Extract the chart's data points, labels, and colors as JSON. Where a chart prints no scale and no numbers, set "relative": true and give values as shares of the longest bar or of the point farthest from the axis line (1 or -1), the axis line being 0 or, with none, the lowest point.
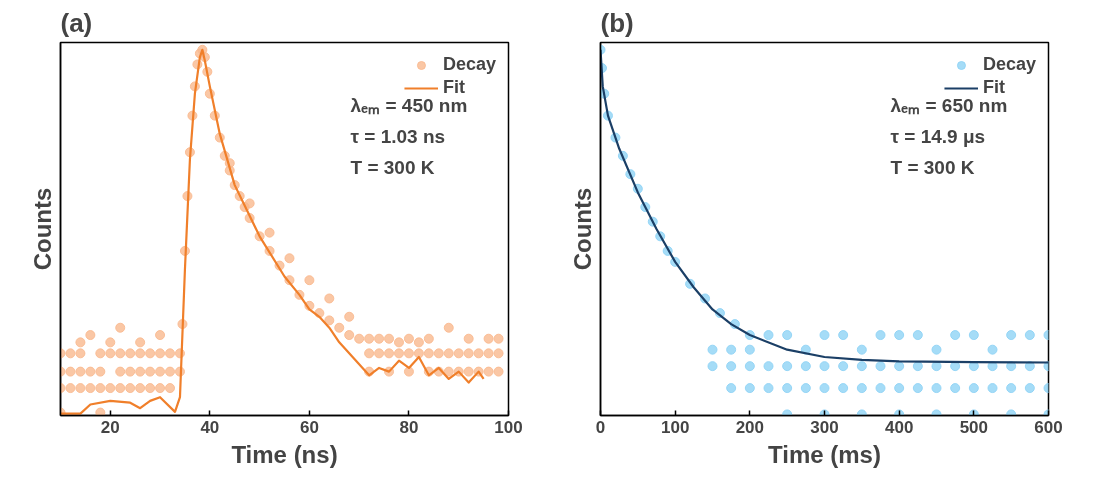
{
  "chart_data": [
    {
      "type": "scatter",
      "title": "(a)",
      "xlabel": "Time (ns)",
      "ylabel": "Counts",
      "relative": true,
      "xlim": [
        10,
        100
      ],
      "xticks": [
        20,
        40,
        60,
        80,
        100
      ],
      "grid": false,
      "legend": "top right",
      "tick_labels": "x",
      "annotations": [
        "λₑₘ = 450 nm",
        "τ = 1.03 ns",
        "T = 300 K"
      ],
      "series": [
        {
          "name": "Decay",
          "marker": "circle",
          "color": "#f9b98f",
          "x": [
            10,
            10,
            10,
            10,
            12,
            12,
            12,
            14,
            14,
            14,
            14,
            16,
            16,
            16,
            18,
            18,
            18,
            18,
            20,
            20,
            20,
            22,
            22,
            22,
            22,
            24,
            24,
            24,
            26,
            26,
            26,
            26,
            28,
            28,
            28,
            30,
            30,
            30,
            30,
            32,
            32,
            32,
            34,
            34,
            34.5,
            35,
            35.5,
            36,
            36.5,
            37,
            37.5,
            38,
            38.5,
            39,
            39.5,
            40,
            41,
            42,
            43,
            44,
            45,
            46,
            47,
            48,
            50,
            52,
            54,
            56,
            58,
            60,
            62,
            64,
            66,
            68,
            70,
            44,
            48,
            52,
            56,
            60,
            64,
            68,
            72,
            72,
            72,
            74,
            74,
            76,
            76,
            76,
            78,
            78,
            80,
            80,
            80,
            82,
            82,
            84,
            84,
            84,
            86,
            86,
            88,
            88,
            88,
            90,
            90,
            92,
            92,
            92,
            94,
            94,
            96,
            96,
            96,
            98,
            98,
            98
          ],
          "values": [
            0.17,
            0.12,
            0.075,
            0.008,
            0.17,
            0.12,
            0.075,
            0.2,
            0.17,
            0.12,
            0.075,
            0.22,
            0.12,
            0.075,
            0.17,
            0.12,
            0.075,
            0.008,
            0.2,
            0.17,
            0.075,
            0.24,
            0.17,
            0.12,
            0.075,
            0.17,
            0.12,
            0.075,
            0.2,
            0.17,
            0.12,
            0.075,
            0.17,
            0.12,
            0.075,
            0.22,
            0.17,
            0.12,
            0.075,
            0.17,
            0.12,
            0.075,
            0.17,
            0.12,
            0.25,
            0.45,
            0.6,
            0.72,
            0.82,
            0.9,
            0.96,
            0.99,
            1.0,
            0.98,
            0.94,
            0.88,
            0.82,
            0.76,
            0.71,
            0.67,
            0.63,
            0.6,
            0.57,
            0.54,
            0.49,
            0.45,
            0.41,
            0.37,
            0.33,
            0.3,
            0.28,
            0.26,
            0.24,
            0.22,
            0.21,
            0.69,
            0.58,
            0.5,
            0.43,
            0.37,
            0.32,
            0.27,
            0.21,
            0.17,
            0.12,
            0.21,
            0.17,
            0.21,
            0.17,
            0.12,
            0.2,
            0.17,
            0.21,
            0.17,
            0.12,
            0.2,
            0.17,
            0.21,
            0.17,
            0.12,
            0.17,
            0.12,
            0.24,
            0.17,
            0.12,
            0.17,
            0.12,
            0.21,
            0.17,
            0.12,
            0.17,
            0.12,
            0.21,
            0.17,
            0.12,
            0.21,
            0.17,
            0.12
          ]
        },
        {
          "name": "Fit",
          "type": "line",
          "line_style": "solid",
          "color": "#f07f2a",
          "x": [
            10,
            14,
            16,
            20,
            24,
            26,
            28,
            30,
            33,
            34,
            35,
            36,
            37,
            38,
            38.5,
            39,
            40,
            42,
            45,
            50,
            55,
            58,
            60,
            62,
            64,
            66,
            68,
            70,
            72,
            74,
            76,
            78,
            80,
            82,
            84,
            86,
            88,
            90,
            92,
            94,
            95
          ],
          "values": [
            0.005,
            0.005,
            0.03,
            0.04,
            0.035,
            0.02,
            0.04,
            0.05,
            0.01,
            0.05,
            0.4,
            0.7,
            0.88,
            0.98,
            1.0,
            0.97,
            0.9,
            0.77,
            0.63,
            0.49,
            0.38,
            0.33,
            0.29,
            0.27,
            0.24,
            0.2,
            0.17,
            0.14,
            0.11,
            0.13,
            0.12,
            0.15,
            0.13,
            0.16,
            0.11,
            0.13,
            0.1,
            0.12,
            0.09,
            0.12,
            0.1
          ]
        }
      ]
    },
    {
      "type": "scatter",
      "title": "(b)",
      "xlabel": "Time (ms)",
      "ylabel": "Counts",
      "relative": true,
      "xlim": [
        0,
        600
      ],
      "xticks": [
        0,
        100,
        200,
        300,
        400,
        500,
        600
      ],
      "grid": false,
      "legend": "top right",
      "tick_labels": "x",
      "annotations": [
        "λₑₘ = 650 nm",
        "τ = 14.9 μs",
        "T = 300 K"
      ],
      "series": [
        {
          "name": "Decay",
          "marker": "circle",
          "color": "#8fd3f5",
          "x": [
            0,
            2,
            5,
            10,
            20,
            30,
            40,
            50,
            60,
            70,
            80,
            90,
            100,
            120,
            140,
            160,
            180,
            200,
            150,
            175,
            200,
            225,
            250,
            275,
            300,
            325,
            350,
            375,
            400,
            425,
            450,
            475,
            500,
            525,
            550,
            575,
            600,
            150,
            175,
            200,
            225,
            250,
            275,
            300,
            325,
            350,
            375,
            400,
            425,
            450,
            475,
            500,
            525,
            550,
            575,
            600,
            175,
            200,
            225,
            250,
            275,
            300,
            325,
            350,
            375,
            400,
            425,
            450,
            475,
            500,
            525,
            550,
            575,
            600,
            250,
            300,
            350,
            400,
            450,
            500,
            550,
            600
          ],
          "values": [
            1.0,
            0.95,
            0.88,
            0.82,
            0.76,
            0.71,
            0.66,
            0.62,
            0.57,
            0.53,
            0.49,
            0.45,
            0.42,
            0.36,
            0.32,
            0.28,
            0.25,
            0.22,
            0.18,
            0.18,
            0.18,
            0.22,
            0.22,
            0.18,
            0.22,
            0.22,
            0.18,
            0.22,
            0.22,
            0.22,
            0.18,
            0.22,
            0.22,
            0.18,
            0.22,
            0.22,
            0.22,
            0.135,
            0.135,
            0.135,
            0.135,
            0.135,
            0.135,
            0.135,
            0.135,
            0.135,
            0.135,
            0.135,
            0.135,
            0.135,
            0.135,
            0.135,
            0.135,
            0.135,
            0.135,
            0.135,
            0.075,
            0.075,
            0.075,
            0.075,
            0.075,
            0.075,
            0.075,
            0.075,
            0.075,
            0.075,
            0.075,
            0.075,
            0.075,
            0.075,
            0.075,
            0.075,
            0.075,
            0.075,
            0.003,
            0.003,
            0.003,
            0.003,
            0.003,
            0.003,
            0.003,
            0.003
          ]
        },
        {
          "name": "Fit",
          "type": "line",
          "line_style": "solid",
          "color": "#1b3f66",
          "x": [
            0,
            3,
            10,
            25,
            50,
            75,
            100,
            125,
            150,
            175,
            200,
            250,
            300,
            350,
            400,
            500,
            600
          ],
          "values": [
            1.0,
            0.9,
            0.82,
            0.73,
            0.61,
            0.51,
            0.42,
            0.35,
            0.29,
            0.25,
            0.22,
            0.18,
            0.16,
            0.152,
            0.148,
            0.146,
            0.145
          ]
        }
      ]
    }
  ]
}
